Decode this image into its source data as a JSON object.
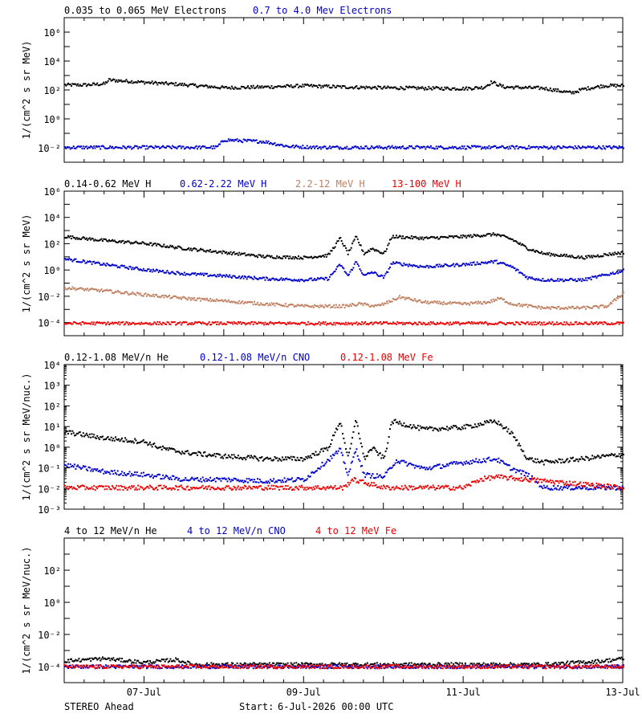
{
  "chart_data": [
    {
      "type": "scatter",
      "panel": "electrons",
      "ylabel": "1/(cm^2 s sr MeV)",
      "yscale": "log",
      "ylim": [
        0.001,
        10000000
      ],
      "ytick_exponents": [
        -2,
        0,
        2,
        4,
        6
      ],
      "xlim": [
        "2026-07-06 00:00",
        "2026-07-13 00:00"
      ],
      "legend_placement": "top-left",
      "grid": false,
      "series": [
        {
          "name": "0.035 to 0.065 MeV Electrons",
          "color": "#000000",
          "x": [
            0.0,
            0.25,
            0.5,
            0.55,
            0.8,
            1.0,
            1.5,
            2.0,
            2.5,
            3.0,
            3.5,
            4.0,
            4.5,
            5.0,
            5.25,
            5.35,
            5.5,
            6.0,
            6.35,
            6.5,
            6.75,
            7.0
          ],
          "y": [
            250,
            250,
            300,
            550,
            450,
            380,
            260,
            160,
            180,
            220,
            180,
            160,
            150,
            140,
            170,
            400,
            180,
            150,
            70,
            130,
            220,
            230
          ]
        },
        {
          "name": "0.7 to 4.0 Mev Electrons",
          "color": "#0000cc",
          "x": [
            0.0,
            1.0,
            1.9,
            2.0,
            2.2,
            2.5,
            2.8,
            3.2,
            4.0,
            5.0,
            6.0,
            7.0
          ],
          "y": [
            0.012,
            0.012,
            0.012,
            0.04,
            0.035,
            0.03,
            0.014,
            0.012,
            0.012,
            0.012,
            0.012,
            0.012
          ]
        }
      ]
    },
    {
      "type": "scatter",
      "panel": "protons",
      "ylabel": "1/(cm^2 s sr MeV)",
      "yscale": "log",
      "ylim": [
        1e-05,
        1000000
      ],
      "ytick_exponents": [
        -4,
        -2,
        0,
        2,
        4,
        6
      ],
      "xlim": [
        "2026-07-06 00:00",
        "2026-07-13 00:00"
      ],
      "legend_placement": "top-left",
      "grid": false,
      "series": [
        {
          "name": "0.14-0.62 MeV H",
          "color": "#000000",
          "x": [
            0.0,
            0.5,
            1.0,
            1.5,
            2.0,
            2.5,
            3.0,
            3.3,
            3.45,
            3.55,
            3.65,
            3.75,
            3.85,
            4.0,
            4.1,
            4.5,
            5.0,
            5.4,
            5.6,
            5.8,
            6.0,
            6.5,
            7.0
          ],
          "y": [
            400,
            200,
            120,
            50,
            25,
            12,
            10,
            15,
            300,
            20,
            400,
            20,
            50,
            20,
            400,
            300,
            400,
            600,
            250,
            50,
            20,
            10,
            25
          ]
        },
        {
          "name": "0.62-2.22 MeV H",
          "color": "#0000cc",
          "x": [
            0.0,
            0.5,
            1.0,
            1.5,
            2.0,
            2.5,
            3.0,
            3.3,
            3.45,
            3.55,
            3.65,
            3.75,
            3.85,
            4.0,
            4.1,
            4.5,
            5.0,
            5.4,
            5.6,
            5.8,
            6.0,
            6.5,
            7.0
          ],
          "y": [
            8,
            3,
            1.2,
            0.6,
            0.4,
            0.25,
            0.2,
            0.25,
            3,
            0.4,
            5,
            0.4,
            0.8,
            0.3,
            4,
            2,
            3,
            5,
            2,
            0.3,
            0.2,
            0.2,
            1
          ]
        },
        {
          "name": "2.2-12 MeV H",
          "color": "#c08060",
          "x": [
            0.0,
            0.5,
            1.0,
            1.5,
            2.0,
            2.5,
            3.0,
            3.5,
            3.7,
            3.9,
            4.0,
            4.2,
            4.5,
            5.0,
            5.3,
            5.45,
            5.6,
            6.0,
            6.5,
            6.8,
            7.0
          ],
          "y": [
            0.05,
            0.03,
            0.015,
            0.008,
            0.005,
            0.003,
            0.002,
            0.002,
            0.003,
            0.002,
            0.003,
            0.01,
            0.004,
            0.003,
            0.004,
            0.008,
            0.003,
            0.0015,
            0.0015,
            0.002,
            0.02
          ]
        },
        {
          "name": "13-100 MeV H",
          "color": "#ee0000",
          "x": [
            0.0,
            7.0
          ],
          "y": [
            0.0001,
            0.0001
          ]
        }
      ]
    },
    {
      "type": "scatter",
      "panel": "heavy-ions-low",
      "ylabel": "1/(cm^2 s sr MeV/nuc.)",
      "yscale": "log",
      "ylim": [
        0.001,
        10000
      ],
      "ytick_exponents": [
        -3,
        -2,
        -1,
        0,
        1,
        2,
        3,
        4
      ],
      "xlim": [
        "2026-07-06 00:00",
        "2026-07-13 00:00"
      ],
      "legend_placement": "top-left",
      "grid": false,
      "series": [
        {
          "name": "0.12-1.08 MeV/n He",
          "color": "#000000",
          "x": [
            0.0,
            0.5,
            1.0,
            1.2,
            1.5,
            2.0,
            2.5,
            3.0,
            3.3,
            3.45,
            3.55,
            3.65,
            3.75,
            3.85,
            4.0,
            4.1,
            4.5,
            5.0,
            5.4,
            5.6,
            5.8,
            6.0,
            6.5,
            7.0
          ],
          "y": [
            6,
            3,
            2,
            1,
            0.6,
            0.4,
            0.3,
            0.3,
            1,
            20,
            0.3,
            25,
            0.3,
            1,
            0.3,
            20,
            8,
            10,
            20,
            5,
            0.3,
            0.2,
            0.3,
            0.5
          ]
        },
        {
          "name": "0.12-1.08 MeV/n CNO",
          "color": "#0000cc",
          "x": [
            0.0,
            0.5,
            1.0,
            1.5,
            2.0,
            2.5,
            3.0,
            3.45,
            3.55,
            3.65,
            3.75,
            4.0,
            4.15,
            4.5,
            5.0,
            5.4,
            5.6,
            5.8,
            6.0,
            7.0
          ],
          "y": [
            0.15,
            0.07,
            0.05,
            0.03,
            0.03,
            0.025,
            0.03,
            0.8,
            0.05,
            0.9,
            0.05,
            0.04,
            0.25,
            0.1,
            0.2,
            0.3,
            0.1,
            0.05,
            0.012,
            0.012
          ]
        },
        {
          "name": "0.12-1.08 MeV Fe",
          "color": "#ee0000",
          "x": [
            0.0,
            3.5,
            3.6,
            4.0,
            5.0,
            5.2,
            5.4,
            7.0
          ],
          "y": [
            0.012,
            0.012,
            0.03,
            0.012,
            0.012,
            0.03,
            0.04,
            0.012
          ]
        }
      ]
    },
    {
      "type": "scatter",
      "panel": "heavy-ions-high",
      "ylabel": "1/(cm^2 s sr MeV/nuc.)",
      "yscale": "log",
      "ylim": [
        1e-05,
        10000
      ],
      "ytick_exponents": [
        -4,
        -2,
        0,
        2
      ],
      "xlim": [
        "2026-07-06 00:00",
        "2026-07-13 00:00"
      ],
      "xticks": [
        "07-Jul",
        "09-Jul",
        "11-Jul",
        "13-Jul"
      ],
      "legend_placement": "top-left",
      "grid": false,
      "series": [
        {
          "name": "4 to 12 MeV/n He",
          "color": "#000000",
          "x": [
            0.0,
            0.5,
            1.0,
            1.4,
            1.6,
            2.0,
            3.0,
            4.0,
            4.3,
            5.0,
            6.0,
            6.75,
            7.0
          ],
          "y": [
            0.00025,
            0.00035,
            0.0002,
            0.0003,
            0.00015,
            0.00015,
            0.00015,
            0.00015,
            0.00015,
            0.00015,
            0.00015,
            0.00025,
            0.00035
          ]
        },
        {
          "name": "4 to 12 MeV/n CNO",
          "color": "#0000cc",
          "x": [
            0.0,
            7.0
          ],
          "y": [
            0.00011,
            0.00011
          ]
        },
        {
          "name": "4 to 12 MeV Fe",
          "color": "#ee0000",
          "x": [
            0.0,
            7.0
          ],
          "y": [
            0.00011,
            0.00011
          ]
        }
      ]
    }
  ],
  "footer": {
    "spacecraft": "STEREO Ahead",
    "start_label": "Start:",
    "start_value": "6-Jul-2026 00:00 UTC"
  }
}
